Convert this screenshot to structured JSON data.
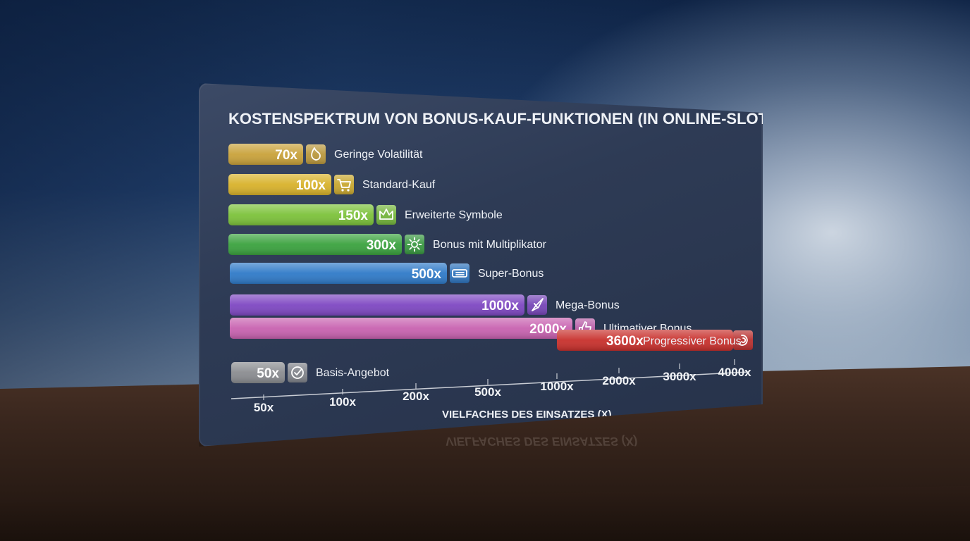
{
  "chart_data": {
    "type": "bar",
    "orientation": "horizontal",
    "title": "KOSTENSPEKTRUM VON BONUS-KAUF-FUNKTIONEN (IN ONLINE-SLOTS)",
    "xlabel": "VIELFACHES DES EINSATZES (X)",
    "x_scale": "log",
    "xlim": [
      50,
      4000
    ],
    "x_ticks": [
      "50x",
      "100x",
      "200x",
      "500x",
      "1000x",
      "2000x",
      "3000x",
      "4000x"
    ],
    "bars": [
      {
        "label": "Geringe Volatilität",
        "value": 70,
        "value_label": "70x",
        "color": "#c9a23a",
        "icon": "flame-icon"
      },
      {
        "label": "Standard-Kauf",
        "value": 100,
        "value_label": "100x",
        "color": "#d8b22a",
        "icon": "cart-icon"
      },
      {
        "label": "Erweiterte Symbole",
        "value": 150,
        "value_label": "150x",
        "color": "#7cc23a",
        "icon": "crown-icon"
      },
      {
        "label": "Bonus mit Multiplikator",
        "value": 300,
        "value_label": "300x",
        "color": "#3aa23e",
        "icon": "burst-icon"
      },
      {
        "label": "Super-Bonus",
        "value": 500,
        "value_label": "500x",
        "color": "#2f7ac8",
        "icon": "ticket-icon"
      },
      {
        "label": "Mega-Bonus",
        "value": 1000,
        "value_label": "1000x",
        "color": "#7e47c2",
        "icon": "rocket-icon"
      },
      {
        "label": "Ultimativer Bonus",
        "value": 2000,
        "value_label": "2000x",
        "color": "#c862b0",
        "icon": "thumbs-up-icon"
      },
      {
        "label": "Progressiver Bonus",
        "value": 3600,
        "value_label": "3600x",
        "color": "#c8302c",
        "icon": "spiral-icon"
      },
      {
        "label": "Basis-Angebot",
        "value": 50,
        "value_label": "50x",
        "color": "#8a8c90",
        "icon": "check-icon"
      }
    ],
    "grid": false,
    "legend": "none"
  }
}
